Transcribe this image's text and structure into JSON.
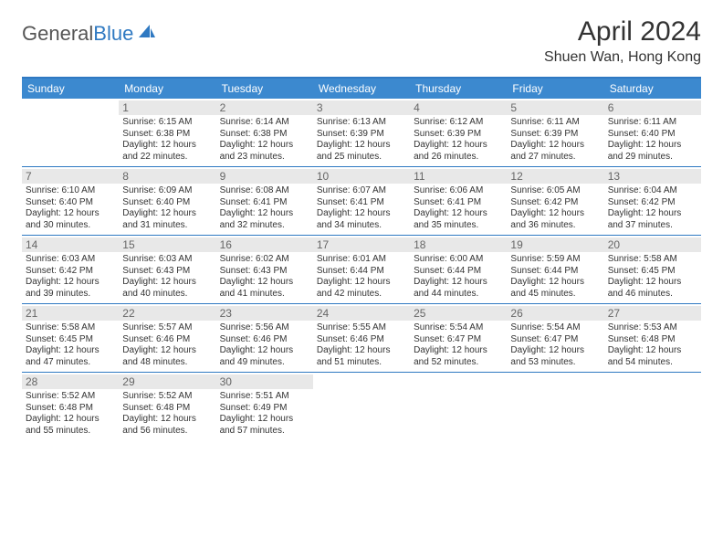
{
  "logo": {
    "part1": "General",
    "part2": "Blue"
  },
  "title": "April 2024",
  "location": "Shuen Wan, Hong Kong",
  "colors": {
    "header_bg": "#3c89cf",
    "rule": "#2f79c2",
    "daynum_bg": "#e8e8e8",
    "text": "#333333"
  },
  "dow": [
    "Sunday",
    "Monday",
    "Tuesday",
    "Wednesday",
    "Thursday",
    "Friday",
    "Saturday"
  ],
  "weeks": [
    [
      {
        "n": "",
        "sr": "",
        "ss": "",
        "dl": ""
      },
      {
        "n": "1",
        "sr": "Sunrise: 6:15 AM",
        "ss": "Sunset: 6:38 PM",
        "dl": "Daylight: 12 hours and 22 minutes."
      },
      {
        "n": "2",
        "sr": "Sunrise: 6:14 AM",
        "ss": "Sunset: 6:38 PM",
        "dl": "Daylight: 12 hours and 23 minutes."
      },
      {
        "n": "3",
        "sr": "Sunrise: 6:13 AM",
        "ss": "Sunset: 6:39 PM",
        "dl": "Daylight: 12 hours and 25 minutes."
      },
      {
        "n": "4",
        "sr": "Sunrise: 6:12 AM",
        "ss": "Sunset: 6:39 PM",
        "dl": "Daylight: 12 hours and 26 minutes."
      },
      {
        "n": "5",
        "sr": "Sunrise: 6:11 AM",
        "ss": "Sunset: 6:39 PM",
        "dl": "Daylight: 12 hours and 27 minutes."
      },
      {
        "n": "6",
        "sr": "Sunrise: 6:11 AM",
        "ss": "Sunset: 6:40 PM",
        "dl": "Daylight: 12 hours and 29 minutes."
      }
    ],
    [
      {
        "n": "7",
        "sr": "Sunrise: 6:10 AM",
        "ss": "Sunset: 6:40 PM",
        "dl": "Daylight: 12 hours and 30 minutes."
      },
      {
        "n": "8",
        "sr": "Sunrise: 6:09 AM",
        "ss": "Sunset: 6:40 PM",
        "dl": "Daylight: 12 hours and 31 minutes."
      },
      {
        "n": "9",
        "sr": "Sunrise: 6:08 AM",
        "ss": "Sunset: 6:41 PM",
        "dl": "Daylight: 12 hours and 32 minutes."
      },
      {
        "n": "10",
        "sr": "Sunrise: 6:07 AM",
        "ss": "Sunset: 6:41 PM",
        "dl": "Daylight: 12 hours and 34 minutes."
      },
      {
        "n": "11",
        "sr": "Sunrise: 6:06 AM",
        "ss": "Sunset: 6:41 PM",
        "dl": "Daylight: 12 hours and 35 minutes."
      },
      {
        "n": "12",
        "sr": "Sunrise: 6:05 AM",
        "ss": "Sunset: 6:42 PM",
        "dl": "Daylight: 12 hours and 36 minutes."
      },
      {
        "n": "13",
        "sr": "Sunrise: 6:04 AM",
        "ss": "Sunset: 6:42 PM",
        "dl": "Daylight: 12 hours and 37 minutes."
      }
    ],
    [
      {
        "n": "14",
        "sr": "Sunrise: 6:03 AM",
        "ss": "Sunset: 6:42 PM",
        "dl": "Daylight: 12 hours and 39 minutes."
      },
      {
        "n": "15",
        "sr": "Sunrise: 6:03 AM",
        "ss": "Sunset: 6:43 PM",
        "dl": "Daylight: 12 hours and 40 minutes."
      },
      {
        "n": "16",
        "sr": "Sunrise: 6:02 AM",
        "ss": "Sunset: 6:43 PM",
        "dl": "Daylight: 12 hours and 41 minutes."
      },
      {
        "n": "17",
        "sr": "Sunrise: 6:01 AM",
        "ss": "Sunset: 6:44 PM",
        "dl": "Daylight: 12 hours and 42 minutes."
      },
      {
        "n": "18",
        "sr": "Sunrise: 6:00 AM",
        "ss": "Sunset: 6:44 PM",
        "dl": "Daylight: 12 hours and 44 minutes."
      },
      {
        "n": "19",
        "sr": "Sunrise: 5:59 AM",
        "ss": "Sunset: 6:44 PM",
        "dl": "Daylight: 12 hours and 45 minutes."
      },
      {
        "n": "20",
        "sr": "Sunrise: 5:58 AM",
        "ss": "Sunset: 6:45 PM",
        "dl": "Daylight: 12 hours and 46 minutes."
      }
    ],
    [
      {
        "n": "21",
        "sr": "Sunrise: 5:58 AM",
        "ss": "Sunset: 6:45 PM",
        "dl": "Daylight: 12 hours and 47 minutes."
      },
      {
        "n": "22",
        "sr": "Sunrise: 5:57 AM",
        "ss": "Sunset: 6:46 PM",
        "dl": "Daylight: 12 hours and 48 minutes."
      },
      {
        "n": "23",
        "sr": "Sunrise: 5:56 AM",
        "ss": "Sunset: 6:46 PM",
        "dl": "Daylight: 12 hours and 49 minutes."
      },
      {
        "n": "24",
        "sr": "Sunrise: 5:55 AM",
        "ss": "Sunset: 6:46 PM",
        "dl": "Daylight: 12 hours and 51 minutes."
      },
      {
        "n": "25",
        "sr": "Sunrise: 5:54 AM",
        "ss": "Sunset: 6:47 PM",
        "dl": "Daylight: 12 hours and 52 minutes."
      },
      {
        "n": "26",
        "sr": "Sunrise: 5:54 AM",
        "ss": "Sunset: 6:47 PM",
        "dl": "Daylight: 12 hours and 53 minutes."
      },
      {
        "n": "27",
        "sr": "Sunrise: 5:53 AM",
        "ss": "Sunset: 6:48 PM",
        "dl": "Daylight: 12 hours and 54 minutes."
      }
    ],
    [
      {
        "n": "28",
        "sr": "Sunrise: 5:52 AM",
        "ss": "Sunset: 6:48 PM",
        "dl": "Daylight: 12 hours and 55 minutes."
      },
      {
        "n": "29",
        "sr": "Sunrise: 5:52 AM",
        "ss": "Sunset: 6:48 PM",
        "dl": "Daylight: 12 hours and 56 minutes."
      },
      {
        "n": "30",
        "sr": "Sunrise: 5:51 AM",
        "ss": "Sunset: 6:49 PM",
        "dl": "Daylight: 12 hours and 57 minutes."
      },
      {
        "n": "",
        "sr": "",
        "ss": "",
        "dl": ""
      },
      {
        "n": "",
        "sr": "",
        "ss": "",
        "dl": ""
      },
      {
        "n": "",
        "sr": "",
        "ss": "",
        "dl": ""
      },
      {
        "n": "",
        "sr": "",
        "ss": "",
        "dl": ""
      }
    ]
  ]
}
